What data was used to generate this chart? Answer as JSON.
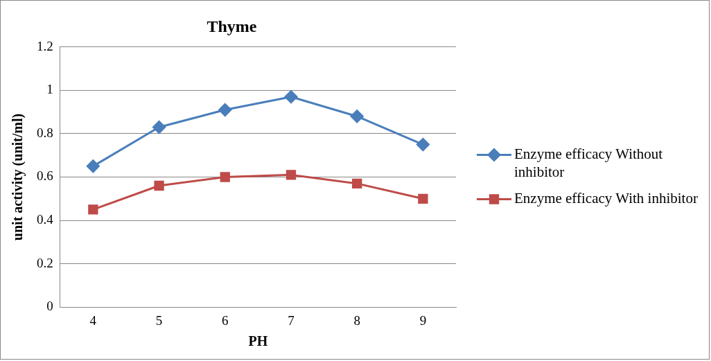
{
  "chart_data": {
    "type": "line",
    "title": "Thyme",
    "xlabel": "PH",
    "ylabel": "unit activity (unit/ml)",
    "categories": [
      "4",
      "5",
      "6",
      "7",
      "8",
      "9"
    ],
    "series": [
      {
        "name": "Enzyme efficacy Without inhibitor",
        "color": "#4a7ebb",
        "marker": "diamond",
        "values": [
          0.65,
          0.83,
          0.91,
          0.97,
          0.88,
          0.75
        ]
      },
      {
        "name": "Enzyme efficacy With inhibitor",
        "color": "#be4b48",
        "marker": "square",
        "values": [
          0.45,
          0.56,
          0.6,
          0.61,
          0.57,
          0.5
        ]
      }
    ],
    "ylim": [
      0,
      1.2
    ],
    "yticks": [
      0,
      0.2,
      0.4,
      0.6,
      0.8,
      1,
      1.2
    ],
    "grid": "y",
    "legend": "right",
    "line_style": "solid"
  }
}
